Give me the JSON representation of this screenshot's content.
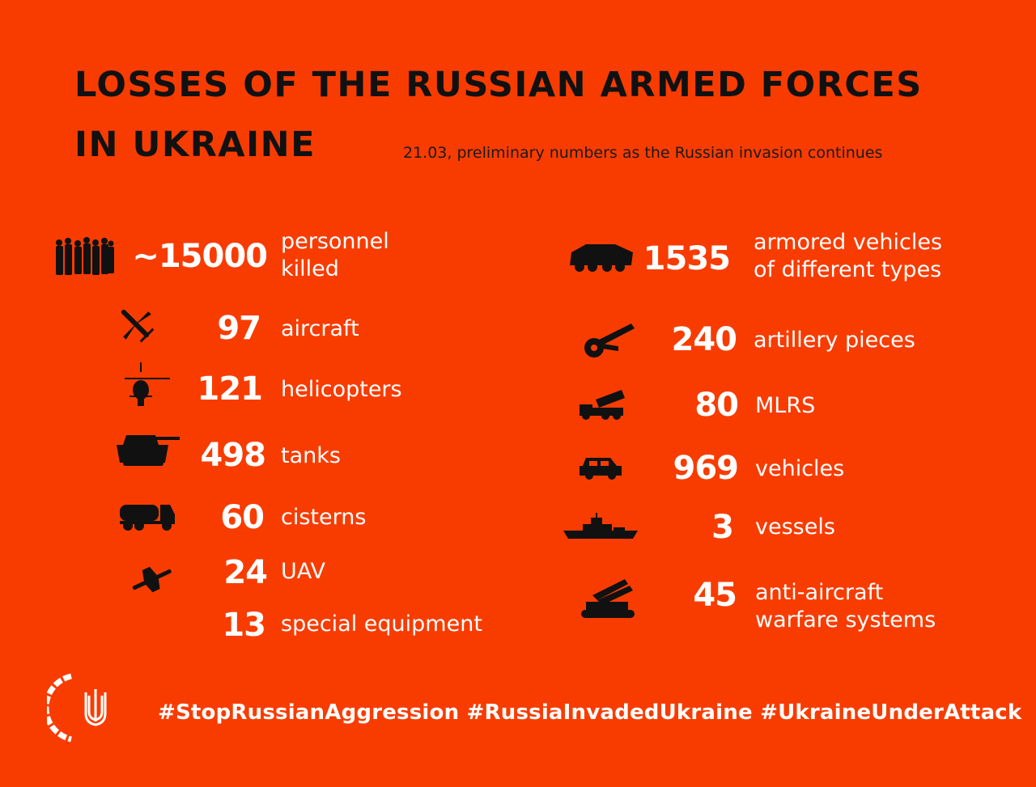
{
  "title": {
    "line1": "LOSSES OF THE RUSSIAN ARMED FORCES",
    "line2": "IN UKRAINE"
  },
  "subtitle": "21.03, preliminary numbers as the Russian invasion continues",
  "left_items": [
    {
      "icon": "personnel-icon",
      "value": "~15000",
      "label_line1": "personnel",
      "label_line2": "killed"
    },
    {
      "icon": "aircraft-icon",
      "value": "97",
      "label_line1": "aircraft",
      "label_line2": ""
    },
    {
      "icon": "helicopter-icon",
      "value": "121",
      "label_line1": "helicopters",
      "label_line2": ""
    },
    {
      "icon": "tank-icon",
      "value": "498",
      "label_line1": "tanks",
      "label_line2": ""
    },
    {
      "icon": "cistern-icon",
      "value": "60",
      "label_line1": "cisterns",
      "label_line2": ""
    },
    {
      "icon": "uav-icon",
      "value": "24",
      "label_line1": "UAV",
      "label_line2": ""
    },
    {
      "icon": "",
      "value": "13",
      "label_line1": "special equipment",
      "label_line2": ""
    }
  ],
  "right_items": [
    {
      "icon": "armored-vehicle-icon",
      "value": "1535",
      "label_line1": "armored vehicles",
      "label_line2": "of different types"
    },
    {
      "icon": "artillery-icon",
      "value": "240",
      "label_line1": "artillery pieces",
      "label_line2": ""
    },
    {
      "icon": "mlrs-icon",
      "value": "80",
      "label_line1": "MLRS",
      "label_line2": ""
    },
    {
      "icon": "vehicle-icon",
      "value": "969",
      "label_line1": "vehicles",
      "label_line2": ""
    },
    {
      "icon": "vessel-icon",
      "value": "3",
      "label_line1": "vessels",
      "label_line2": ""
    },
    {
      "icon": "anti-aircraft-icon",
      "value": "45",
      "label_line1": "anti-aircraft",
      "label_line2": "warfare systems"
    }
  ],
  "hashtags": "#StopRussianAggression #RussiaInvadedUkraine #UkraineUnderAttack",
  "colors": {
    "background": "#f83c00",
    "title": "#111111",
    "text": "#ffffff"
  }
}
